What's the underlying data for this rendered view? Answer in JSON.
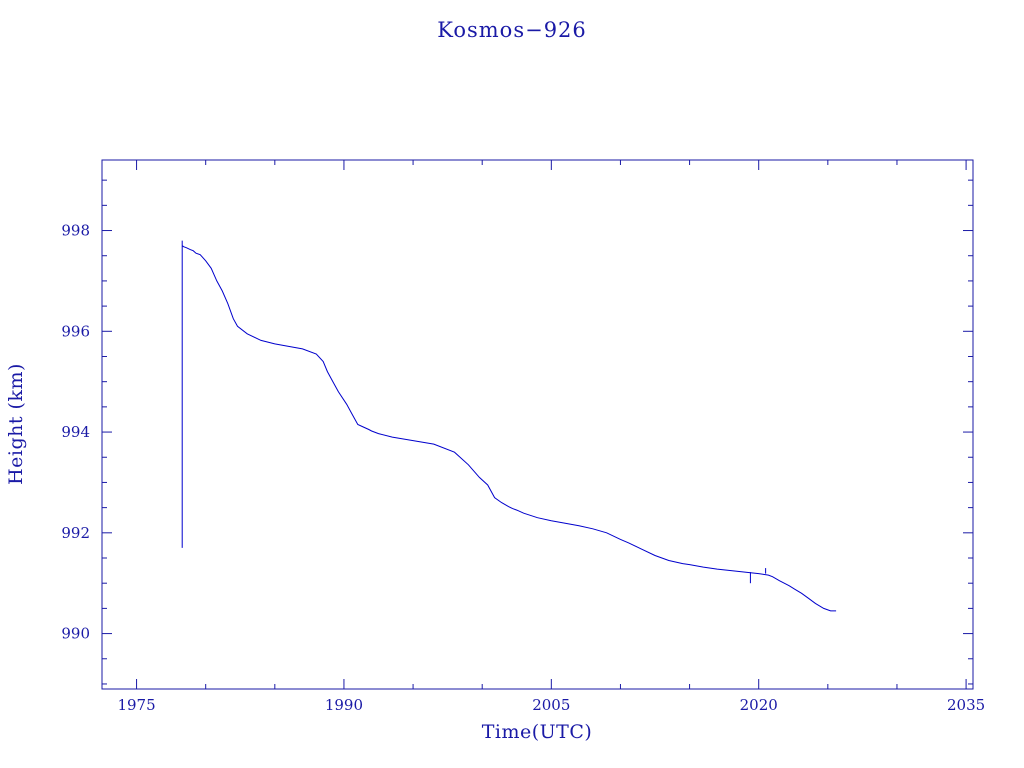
{
  "colors": {
    "axis": "#1a1aa6",
    "series": "#0000cc",
    "background": "#ffffff"
  },
  "chart_data": {
    "type": "line",
    "title": "Kosmos−926",
    "xlabel": "Time(UTC)",
    "ylabel": "Height (km)",
    "xlim": [
      1972.5,
      2035.5
    ],
    "ylim": [
      988.9,
      999.4
    ],
    "x_ticks": [
      1975,
      1990,
      2005,
      2020,
      2035
    ],
    "y_ticks": [
      990,
      992,
      994,
      996,
      998
    ],
    "grid": false,
    "series": [
      {
        "x": [
          1978.3,
          1978.3,
          1978.3,
          1978.4,
          1978.6,
          1978.9,
          1979.1,
          1979.3,
          1979.6,
          1980.0,
          1980.4,
          1980.8,
          1981.2,
          1981.6,
          1982.0,
          1982.3,
          1983.0,
          1984.0,
          1985.0,
          1986.0,
          1987.0,
          1988.0,
          1988.5,
          1988.8,
          1989.2,
          1989.6,
          1990.2,
          1990.6,
          1991.0,
          1991.4,
          1991.8,
          1992.0,
          1992.5,
          1993.5,
          1995.0,
          1996.5,
          1998.0,
          1999.0,
          1999.8,
          2000.4,
          2000.9,
          2001.4,
          2001.9,
          2002.2,
          2002.5,
          2003.0,
          2004.0,
          2005.0,
          2006.0,
          2007.0,
          2008.0,
          2009.0,
          2010.0,
          2010.6,
          2011.5,
          2012.5,
          2013.5,
          2014.5,
          2015.0,
          2016.0,
          2017.0,
          2018.0,
          2019.0,
          2020.0,
          2020.7,
          2021.0,
          2021.5,
          2022.2,
          2022.6,
          2023.1,
          2023.6,
          2024.1,
          2024.7,
          2025.2,
          2025.6
        ],
        "y": [
          997.8,
          991.7,
          997.7,
          997.68,
          997.66,
          997.62,
          997.6,
          997.55,
          997.52,
          997.4,
          997.25,
          997.0,
          996.8,
          996.55,
          996.25,
          996.1,
          995.95,
          995.82,
          995.75,
          995.7,
          995.65,
          995.55,
          995.4,
          995.2,
          995.0,
          994.8,
          994.55,
          994.35,
          994.15,
          994.1,
          994.05,
          994.02,
          993.97,
          993.9,
          993.83,
          993.76,
          993.6,
          993.35,
          993.1,
          992.95,
          992.7,
          992.6,
          992.52,
          992.48,
          992.45,
          992.39,
          992.3,
          992.24,
          992.19,
          992.14,
          992.08,
          992.0,
          991.87,
          991.8,
          991.68,
          991.55,
          991.45,
          991.39,
          991.37,
          991.32,
          991.28,
          991.25,
          991.22,
          991.19,
          991.16,
          991.13,
          991.05,
          990.95,
          990.88,
          990.8,
          990.7,
          990.6,
          990.5,
          990.45,
          990.45
        ]
      }
    ]
  }
}
